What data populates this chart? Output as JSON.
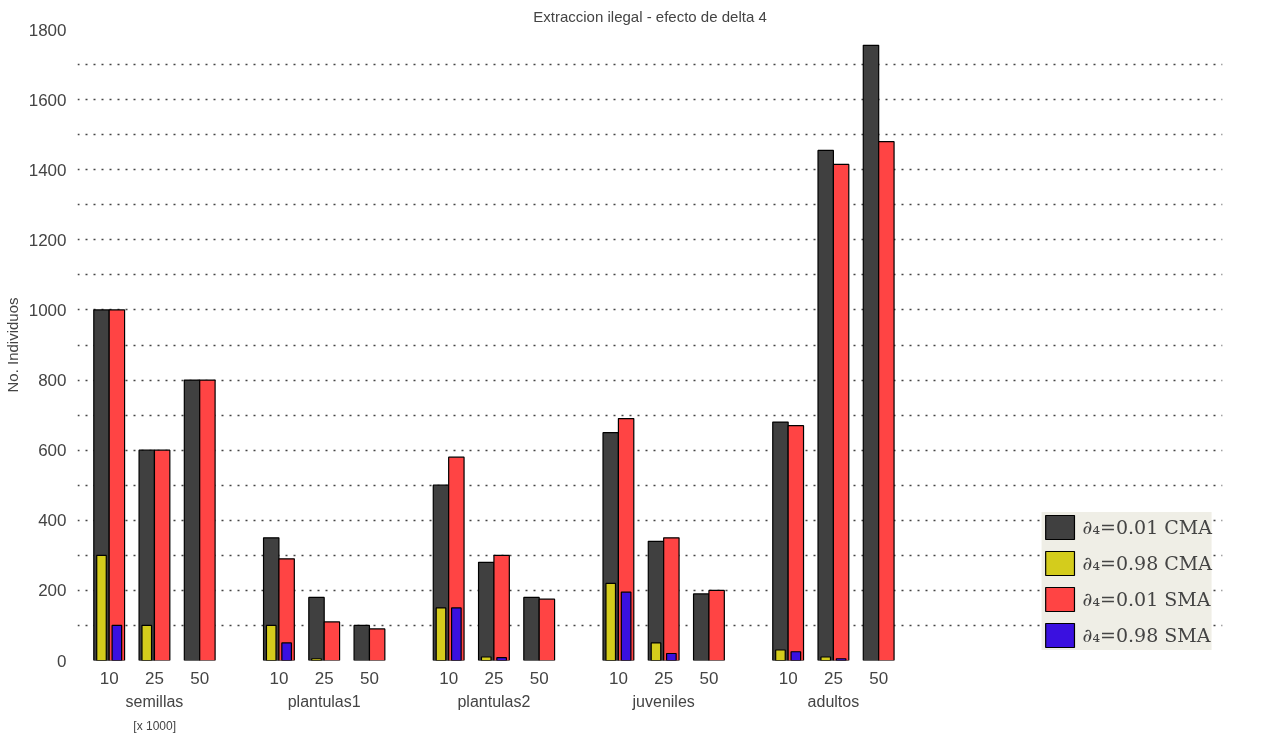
{
  "chart_data": {
    "type": "bar",
    "title": "Extraccion ilegal - efecto de delta 4",
    "ylabel": "No. Individuos",
    "categories": [
      "10",
      "25",
      "50",
      "10",
      "25",
      "50",
      "10",
      "25",
      "50",
      "10",
      "25",
      "50",
      "10",
      "25",
      "50"
    ],
    "series": [
      {
        "name": "∂₄=0.01 CMA",
        "color": "#404040",
        "values": [
          1000,
          600,
          800,
          350,
          180,
          100,
          500,
          280,
          180,
          650,
          340,
          190,
          680,
          1455,
          1755
        ]
      },
      {
        "name": "∂₄=0.98 CMA",
        "color": "#d4cc1c",
        "values": [
          300,
          100,
          null,
          100,
          5,
          null,
          150,
          10,
          null,
          220,
          50,
          null,
          30,
          10,
          null
        ]
      },
      {
        "name": "∂₄=0.01 SMA",
        "color": "#ff4444",
        "values": [
          1000,
          600,
          800,
          290,
          110,
          90,
          580,
          300,
          175,
          690,
          350,
          200,
          670,
          1415,
          1480
        ]
      },
      {
        "name": "∂₄=0.98 SMA",
        "color": "#3a10e0",
        "values": [
          100,
          null,
          null,
          50,
          null,
          null,
          150,
          8,
          null,
          195,
          20,
          null,
          25,
          5,
          null
        ]
      }
    ],
    "annotations": [
      "semillas",
      "plantulas1",
      "plantulas2",
      "juveniles",
      "adultos",
      "[x 1000]"
    ],
    "ylim": [
      0,
      1800
    ],
    "yticks": [
      0,
      {
        "value": 100,
        "label": null
      },
      200,
      {
        "value": 300,
        "label": null
      },
      400,
      {
        "value": 500,
        "label": null
      },
      600,
      {
        "value": 700,
        "label": null
      },
      800,
      {
        "value": 900,
        "label": null
      },
      1000,
      {
        "value": 1100,
        "label": null
      },
      1200,
      {
        "value": 1300,
        "label": null
      },
      1400,
      {
        "value": 1500,
        "label": null
      },
      1600,
      {
        "value": 1700,
        "label": null
      },
      1800
    ],
    "grid": "y",
    "legend": "bottom right"
  }
}
